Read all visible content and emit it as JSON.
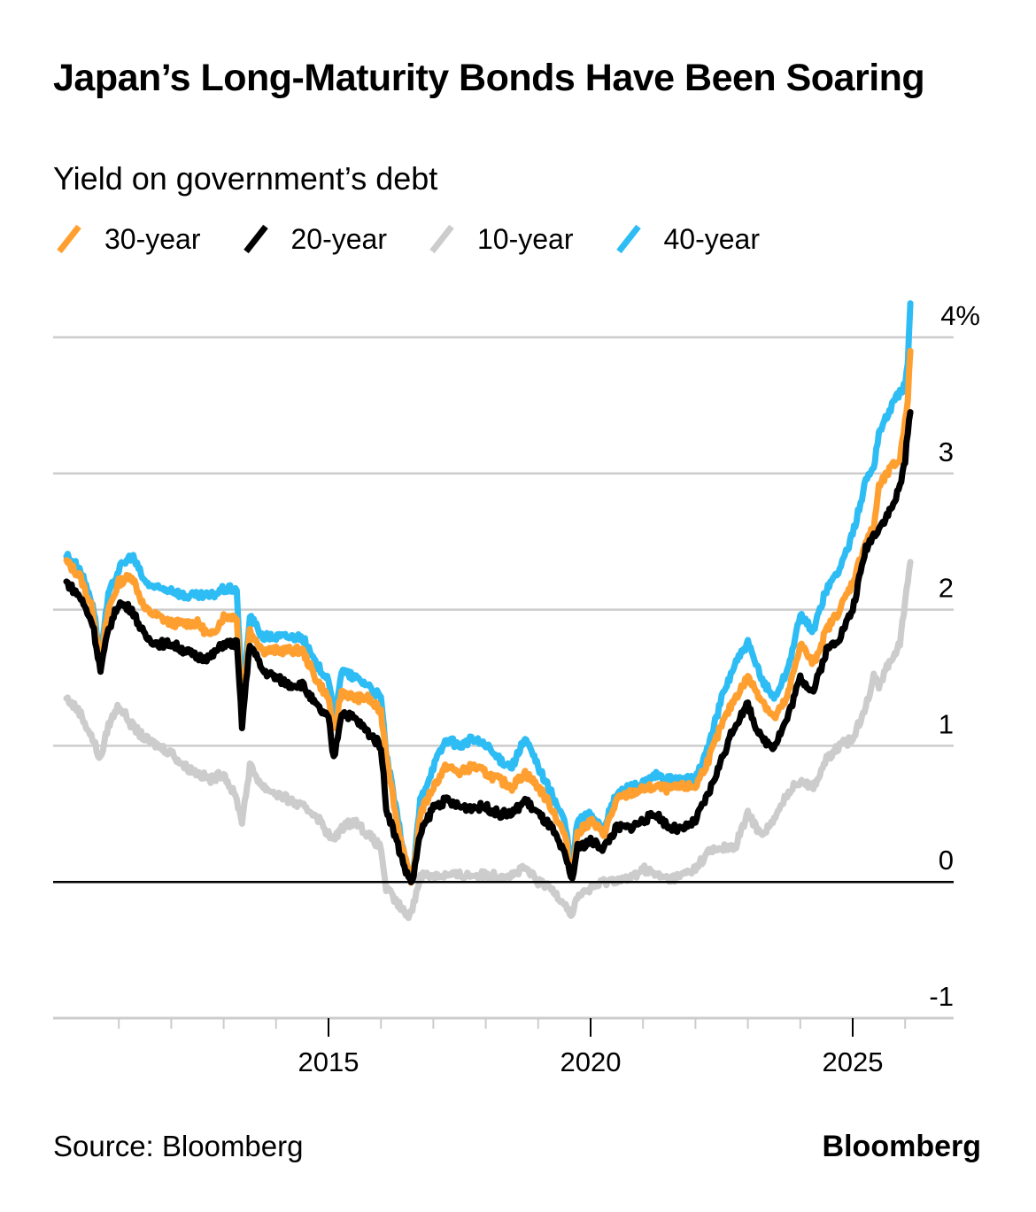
{
  "header": {
    "title": "Japan’s Long-Maturity Bonds Have Been Soaring",
    "subtitle": "Yield on government’s debt"
  },
  "footer": {
    "source": "Source: Bloomberg",
    "brand": "Bloomberg"
  },
  "chart_data": {
    "type": "line",
    "title": "Japan’s Long-Maturity Bonds Have Been Soaring",
    "subtitle": "Yield on government’s debt",
    "xlabel": "",
    "ylabel": "",
    "xlim": [
      2009.75,
      2026.9
    ],
    "ylim": [
      -1,
      4
    ],
    "grid": true,
    "legend_position": "top-left",
    "y_ticks": [
      {
        "value": 4,
        "label": "4%"
      },
      {
        "value": 3,
        "label": "3"
      },
      {
        "value": 2,
        "label": "2"
      },
      {
        "value": 1,
        "label": "1"
      },
      {
        "value": 0,
        "label": "0"
      },
      {
        "value": -1,
        "label": "-1"
      }
    ],
    "x_major_ticks": [
      {
        "value": 2015,
        "label": "2015"
      },
      {
        "value": 2020,
        "label": "2020"
      },
      {
        "value": 2025,
        "label": "2025"
      }
    ],
    "x_minor_ticks": [
      2011,
      2012,
      2013,
      2014,
      2016,
      2017,
      2018,
      2019,
      2021,
      2022,
      2023,
      2024,
      2026
    ],
    "x": [
      2010.0,
      2010.25,
      2010.5,
      2010.65,
      2010.8,
      2011.0,
      2011.25,
      2011.5,
      2011.75,
      2012.0,
      2012.25,
      2012.5,
      2012.75,
      2013.0,
      2013.25,
      2013.35,
      2013.5,
      2013.75,
      2014.0,
      2014.25,
      2014.5,
      2014.75,
      2015.0,
      2015.1,
      2015.25,
      2015.5,
      2015.75,
      2016.0,
      2016.1,
      2016.3,
      2016.5,
      2016.6,
      2016.75,
      2017.0,
      2017.25,
      2017.5,
      2017.75,
      2018.0,
      2018.25,
      2018.5,
      2018.75,
      2019.0,
      2019.25,
      2019.5,
      2019.65,
      2019.75,
      2020.0,
      2020.25,
      2020.5,
      2020.75,
      2021.0,
      2021.25,
      2021.5,
      2021.75,
      2022.0,
      2022.25,
      2022.5,
      2022.75,
      2023.0,
      2023.25,
      2023.5,
      2023.75,
      2024.0,
      2024.25,
      2024.5,
      2024.75,
      2025.0,
      2025.25,
      2025.4,
      2025.5,
      2025.75,
      2025.9,
      2026.0,
      2026.05,
      2026.1
    ],
    "series": [
      {
        "name": "30-year",
        "color": "#ff9f2f",
        "values": [
          2.35,
          2.25,
          2.0,
          1.6,
          2.0,
          2.2,
          2.25,
          2.0,
          1.95,
          1.9,
          1.9,
          1.9,
          1.8,
          1.95,
          1.95,
          1.25,
          1.85,
          1.7,
          1.7,
          1.7,
          1.7,
          1.5,
          1.35,
          1.1,
          1.4,
          1.35,
          1.35,
          1.25,
          0.95,
          0.45,
          0.1,
          0.0,
          0.5,
          0.7,
          0.85,
          0.8,
          0.85,
          0.8,
          0.75,
          0.7,
          0.8,
          0.7,
          0.55,
          0.35,
          0.05,
          0.35,
          0.45,
          0.35,
          0.6,
          0.65,
          0.68,
          0.7,
          0.68,
          0.7,
          0.7,
          0.9,
          1.15,
          1.35,
          1.5,
          1.35,
          1.2,
          1.35,
          1.75,
          1.6,
          1.85,
          2.0,
          2.2,
          2.5,
          2.6,
          2.9,
          3.05,
          3.1,
          3.4,
          3.55,
          3.9
        ]
      },
      {
        "name": "20-year",
        "color": "#000000",
        "values": [
          2.2,
          2.1,
          1.9,
          1.55,
          1.85,
          2.05,
          2.0,
          1.8,
          1.75,
          1.75,
          1.7,
          1.65,
          1.65,
          1.75,
          1.75,
          1.15,
          1.75,
          1.55,
          1.5,
          1.45,
          1.45,
          1.3,
          1.2,
          0.9,
          1.25,
          1.2,
          1.1,
          1.0,
          0.55,
          0.3,
          0.05,
          0.0,
          0.35,
          0.55,
          0.6,
          0.55,
          0.55,
          0.55,
          0.5,
          0.5,
          0.6,
          0.5,
          0.4,
          0.2,
          0.02,
          0.25,
          0.3,
          0.25,
          0.4,
          0.4,
          0.45,
          0.5,
          0.4,
          0.38,
          0.45,
          0.65,
          0.9,
          1.15,
          1.3,
          1.05,
          1.0,
          1.2,
          1.5,
          1.4,
          1.7,
          1.8,
          2.0,
          2.45,
          2.55,
          2.6,
          2.75,
          2.9,
          3.1,
          3.3,
          3.45
        ]
      },
      {
        "name": "10-year",
        "color": "#cccccc",
        "values": [
          1.35,
          1.25,
          1.05,
          0.9,
          1.15,
          1.3,
          1.15,
          1.05,
          1.0,
          0.95,
          0.85,
          0.8,
          0.75,
          0.8,
          0.6,
          0.45,
          0.85,
          0.7,
          0.65,
          0.6,
          0.55,
          0.5,
          0.35,
          0.3,
          0.4,
          0.45,
          0.35,
          0.25,
          -0.05,
          -0.15,
          -0.25,
          -0.2,
          0.05,
          0.05,
          0.05,
          0.05,
          0.05,
          0.05,
          0.05,
          0.05,
          0.1,
          0.0,
          -0.05,
          -0.15,
          -0.25,
          -0.1,
          -0.05,
          0.0,
          0.02,
          0.02,
          0.1,
          0.05,
          0.02,
          0.05,
          0.1,
          0.22,
          0.25,
          0.25,
          0.5,
          0.35,
          0.45,
          0.65,
          0.75,
          0.7,
          0.9,
          1.0,
          1.05,
          1.3,
          1.5,
          1.45,
          1.65,
          1.75,
          2.05,
          2.2,
          2.35
        ]
      },
      {
        "name": "40-year",
        "color": "#2ebcf5",
        "values": [
          2.4,
          2.3,
          2.05,
          1.65,
          2.1,
          2.3,
          2.4,
          2.2,
          2.15,
          2.15,
          2.1,
          2.1,
          2.1,
          2.15,
          2.15,
          1.3,
          1.95,
          1.8,
          1.8,
          1.8,
          1.8,
          1.6,
          1.5,
          1.2,
          1.55,
          1.5,
          1.45,
          1.35,
          0.95,
          0.5,
          0.1,
          0.0,
          0.6,
          0.85,
          1.05,
          1.0,
          1.05,
          1.0,
          0.9,
          0.85,
          1.05,
          0.85,
          0.65,
          0.45,
          0.1,
          0.45,
          0.5,
          0.4,
          0.65,
          0.7,
          0.72,
          0.78,
          0.75,
          0.75,
          0.75,
          1.0,
          1.35,
          1.6,
          1.75,
          1.5,
          1.35,
          1.55,
          1.95,
          1.85,
          2.15,
          2.3,
          2.55,
          2.95,
          3.05,
          3.3,
          3.5,
          3.6,
          3.65,
          3.8,
          4.25
        ]
      }
    ]
  }
}
